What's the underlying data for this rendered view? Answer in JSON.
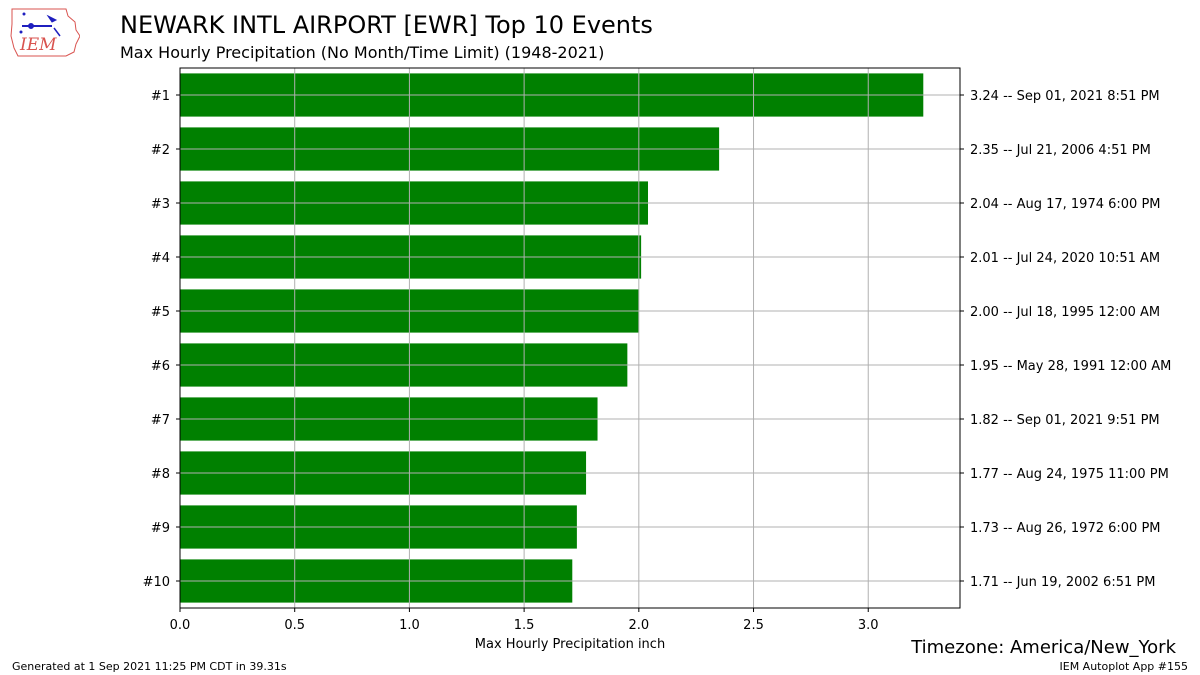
{
  "logo_text": "IEM",
  "title": "NEWARK INTL AIRPORT [EWR] Top 10 Events",
  "subtitle": "Max Hourly Precipitation  (No Month/Time Limit) (1948-2021)",
  "timezone_label": "Timezone: America/New_York",
  "footer_left": "Generated at 1 Sep 2021 11:25 PM CDT in 39.31s",
  "footer_right": "IEM Autoplot App #155",
  "colors": {
    "bar": "#008000",
    "grid": "#b0b0b0",
    "logo_outline": "#d9534f",
    "logo_text": "#d9534f",
    "logo_symbols": "#1f1fbf"
  },
  "chart_data": {
    "type": "bar",
    "orientation": "horizontal",
    "categories": [
      "#1",
      "#2",
      "#3",
      "#4",
      "#5",
      "#6",
      "#7",
      "#8",
      "#9",
      "#10"
    ],
    "values": [
      3.24,
      2.35,
      2.04,
      2.01,
      2.0,
      1.95,
      1.82,
      1.77,
      1.73,
      1.71
    ],
    "right_labels": [
      "3.24 -- Sep 01, 2021 8:51 PM",
      "2.35 -- Jul 21, 2006 4:51 PM",
      "2.04 -- Aug 17, 1974 6:00 PM",
      "2.01 -- Jul 24, 2020 10:51 AM",
      "2.00 -- Jul 18, 1995 12:00 AM",
      "1.95 -- May 28, 1991 12:00 AM",
      "1.82 -- Sep 01, 2021 9:51 PM",
      "1.77 -- Aug 24, 1975 11:00 PM",
      "1.73 -- Aug 26, 1972 6:00 PM",
      "1.71 -- Jun 19, 2002 6:51 PM"
    ],
    "xlabel": "Max Hourly Precipitation inch",
    "xlim": [
      0,
      3.4
    ],
    "xticks": [
      0.0,
      0.5,
      1.0,
      1.5,
      2.0,
      2.5,
      3.0
    ],
    "xtick_labels": [
      "0.0",
      "0.5",
      "1.0",
      "1.5",
      "2.0",
      "2.5",
      "3.0"
    ],
    "grid": true
  }
}
